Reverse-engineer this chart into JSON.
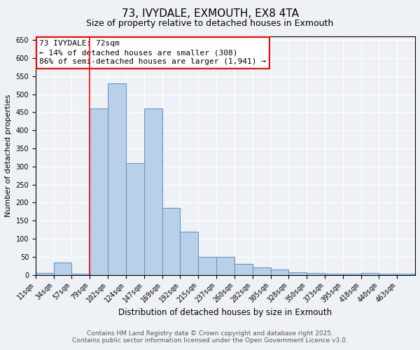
{
  "title1": "73, IVYDALE, EXMOUTH, EX8 4TA",
  "title2": "Size of property relative to detached houses in Exmouth",
  "xlabel": "Distribution of detached houses by size in Exmouth",
  "ylabel": "Number of detached properties",
  "bin_labels": [
    "11sqm",
    "34sqm",
    "57sqm",
    "79sqm",
    "102sqm",
    "124sqm",
    "147sqm",
    "169sqm",
    "192sqm",
    "215sqm",
    "237sqm",
    "260sqm",
    "282sqm",
    "305sqm",
    "328sqm",
    "350sqm",
    "373sqm",
    "395sqm",
    "418sqm",
    "440sqm",
    "463sqm"
  ],
  "bar_heights": [
    5,
    35,
    3,
    460,
    530,
    310,
    460,
    185,
    120,
    50,
    50,
    30,
    20,
    15,
    8,
    5,
    3,
    3,
    5,
    3,
    3
  ],
  "bar_color": "#b8d0e8",
  "bar_edge_color": "#6699cc",
  "background_color": "#eef2f7",
  "red_line_bin_index": 3,
  "ylim_max": 660,
  "ytick_step": 50,
  "annotation_text_line1": "73 IVYDALE: 72sqm",
  "annotation_text_line2": "← 14% of detached houses are smaller (308)",
  "annotation_text_line3": "86% of semi-detached houses are larger (1,941) →",
  "footer1": "Contains HM Land Registry data © Crown copyright and database right 2025.",
  "footer2": "Contains public sector information licensed under the Open Government Licence v3.0.",
  "title1_fontsize": 11,
  "title2_fontsize": 9,
  "xlabel_fontsize": 8.5,
  "ylabel_fontsize": 8,
  "tick_fontsize": 7,
  "footer_fontsize": 6.5,
  "annotation_fontsize": 8
}
